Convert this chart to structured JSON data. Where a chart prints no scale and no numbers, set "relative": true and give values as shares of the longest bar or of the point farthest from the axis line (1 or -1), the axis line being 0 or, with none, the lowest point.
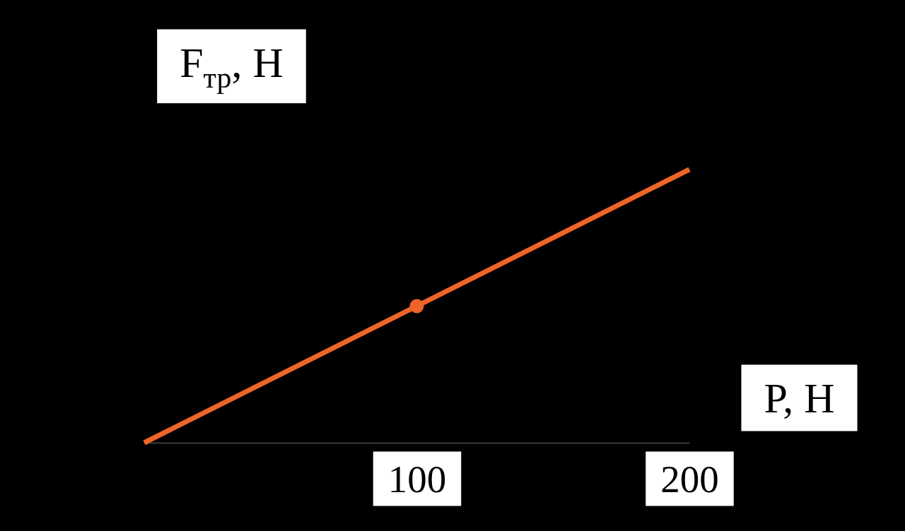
{
  "chart_data": {
    "type": "line",
    "relative": true,
    "xlabel": "P, Н",
    "ylabel": "F$_{тр}$, Н",
    "xlim": [
      0,
      200
    ],
    "xticks": [
      100,
      200
    ],
    "tick_labels": "x",
    "series": [
      {
        "color": "#ef6428",
        "x": [
          0,
          200
        ],
        "values": [
          0,
          1
        ]
      },
      {
        "type": "scatter",
        "color": "#ef6428",
        "x": [
          100
        ],
        "values": [
          0.5
        ]
      }
    ]
  }
}
